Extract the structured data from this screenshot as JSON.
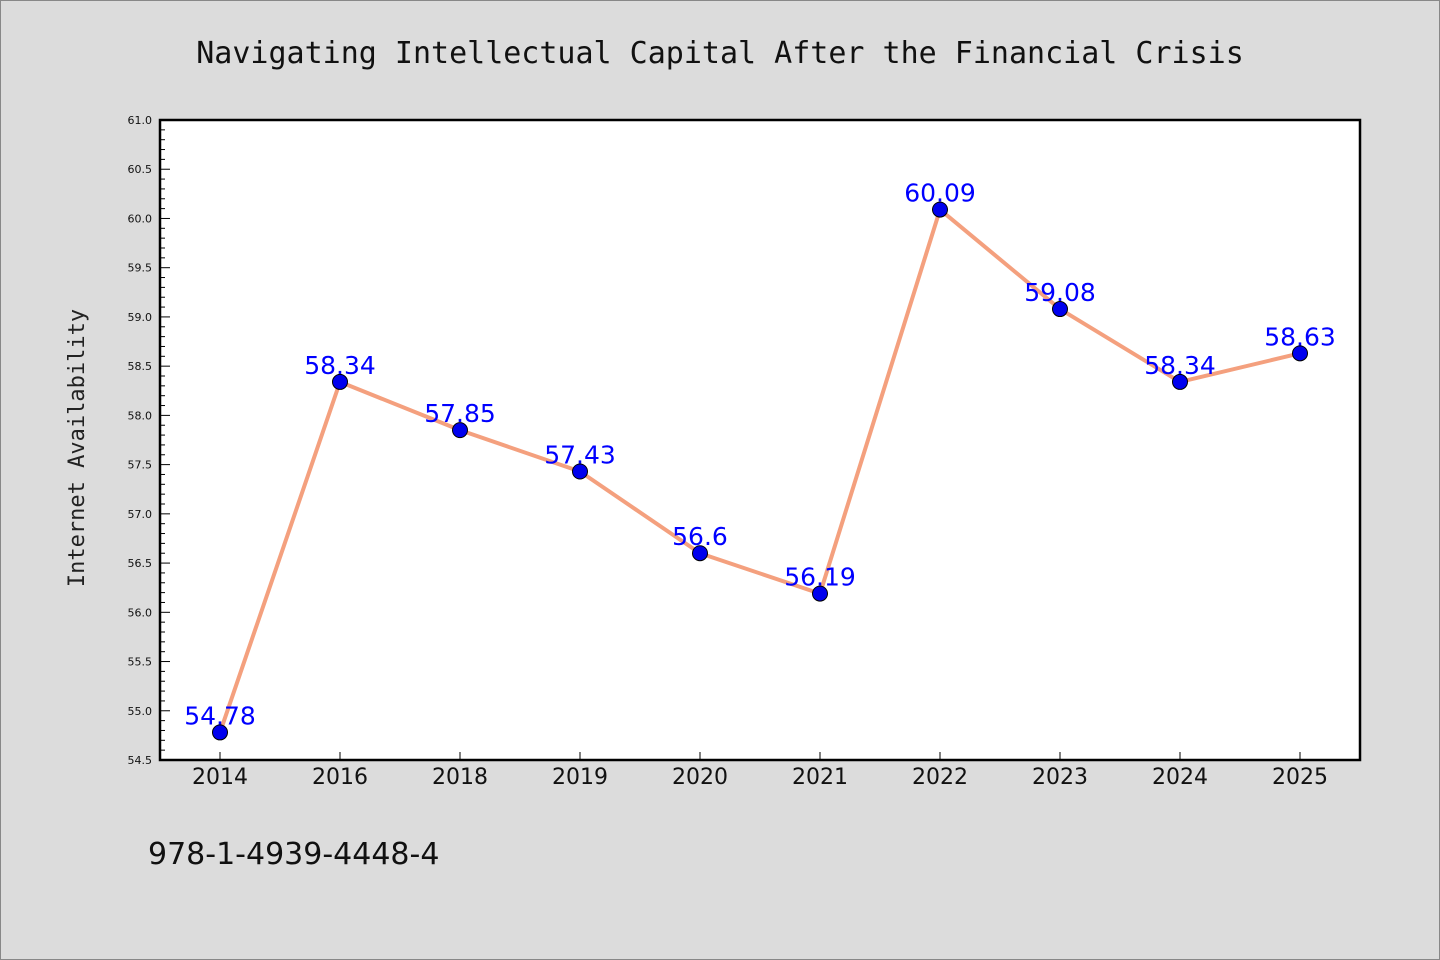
{
  "chart_data": {
    "type": "line",
    "title": "Navigating Intellectual Capital After the Financial Crisis",
    "xlabel": "",
    "ylabel": "Internet Availability",
    "categories": [
      "2014",
      "2016",
      "2018",
      "2019",
      "2020",
      "2021",
      "2022",
      "2023",
      "2024",
      "2025"
    ],
    "series": [
      {
        "values": [
          54.78,
          58.34,
          57.85,
          57.43,
          56.6,
          56.19,
          60.09,
          59.08,
          58.34,
          58.63
        ],
        "data_labels": [
          "54.78",
          "58.34",
          "57.85",
          "57.43",
          "56.6",
          "56.19",
          "60.09",
          "59.08",
          "58.34",
          "58.63"
        ],
        "line_color": "#f4a07e",
        "marker_color": "#0000ee"
      }
    ],
    "ylim": [
      54.5,
      61.0
    ],
    "yticks": [
      "54.5",
      "55.0",
      "55.5",
      "56.0",
      "56.5",
      "57.0",
      "57.5",
      "58.0",
      "58.5",
      "59.0",
      "59.5",
      "60.0",
      "60.5",
      "61.0"
    ],
    "grid": false,
    "legend": "none",
    "colors": {
      "background": "#dcdcdc",
      "plot_background": "#ffffff",
      "data_label": "#0000ff"
    }
  },
  "footer": {
    "isbn": "978-1-4939-4448-4"
  }
}
